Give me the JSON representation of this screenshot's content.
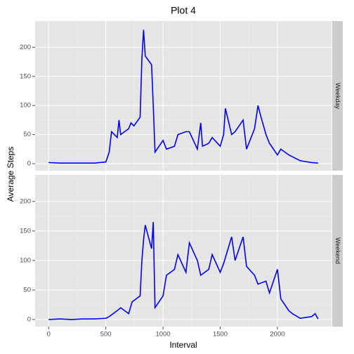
{
  "chart_data": {
    "type": "line",
    "title": "Plot 4",
    "x_label": "Interval",
    "y_label": "Average Steps",
    "color": "#0000ff",
    "grid": true,
    "xlim": [
      -118,
      2473
    ],
    "xticks": [
      0,
      500,
      1000,
      1500,
      2000
    ],
    "ylim": [
      -12,
      245
    ],
    "yticks": [
      0,
      50,
      100,
      150,
      200
    ],
    "panels": [
      {
        "strip": "Weekday",
        "x": [
          0,
          100,
          200,
          300,
          400,
          500,
          530,
          550,
          600,
          615,
          630,
          700,
          720,
          745,
          800,
          815,
          830,
          845,
          900,
          915,
          930,
          1000,
          1030,
          1100,
          1130,
          1200,
          1230,
          1300,
          1330,
          1345,
          1400,
          1430,
          1500,
          1530,
          1545,
          1600,
          1630,
          1700,
          1730,
          1800,
          1830,
          1850,
          1900,
          1930,
          2000,
          2030,
          2100,
          2200,
          2300,
          2355
        ],
        "values": [
          2,
          1,
          1,
          1,
          1,
          3,
          20,
          55,
          45,
          75,
          50,
          60,
          70,
          65,
          80,
          180,
          230,
          185,
          170,
          100,
          20,
          40,
          25,
          30,
          50,
          55,
          55,
          25,
          70,
          30,
          35,
          45,
          30,
          50,
          95,
          50,
          55,
          75,
          25,
          60,
          100,
          85,
          50,
          35,
          15,
          25,
          15,
          5,
          2,
          1
        ]
      },
      {
        "strip": "Weekend",
        "x": [
          0,
          100,
          200,
          300,
          400,
          500,
          530,
          600,
          630,
          700,
          730,
          800,
          815,
          830,
          845,
          900,
          915,
          930,
          1000,
          1030,
          1100,
          1130,
          1200,
          1230,
          1300,
          1330,
          1400,
          1430,
          1500,
          1530,
          1600,
          1630,
          1700,
          1730,
          1800,
          1830,
          1900,
          1930,
          2000,
          2030,
          2100,
          2130,
          2200,
          2300,
          2330,
          2355
        ],
        "values": [
          0,
          1,
          0,
          1,
          1,
          2,
          5,
          15,
          20,
          10,
          30,
          40,
          100,
          135,
          160,
          120,
          165,
          20,
          40,
          75,
          85,
          110,
          80,
          130,
          100,
          75,
          85,
          110,
          80,
          95,
          140,
          100,
          140,
          90,
          75,
          60,
          65,
          45,
          85,
          35,
          15,
          10,
          2,
          5,
          10,
          1
        ]
      }
    ]
  }
}
